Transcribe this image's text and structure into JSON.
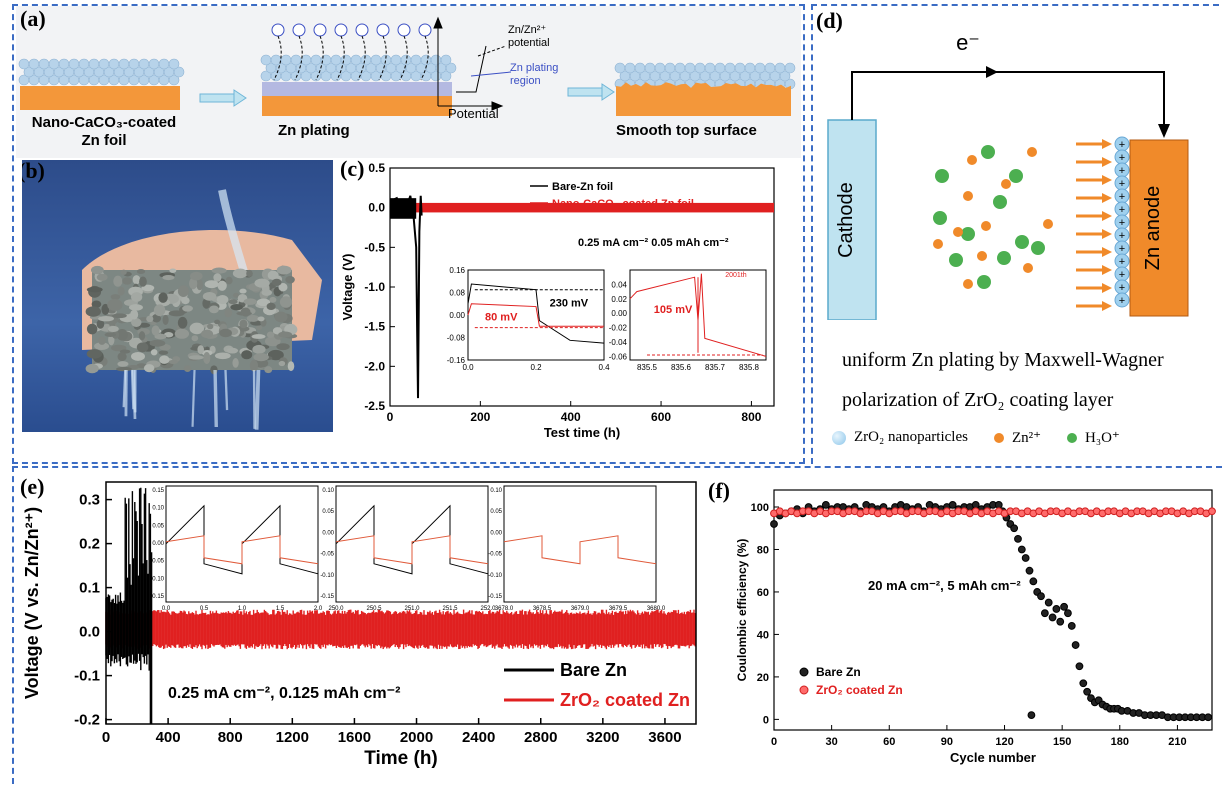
{
  "panels": {
    "a": {
      "label": "(a)",
      "captions": [
        "Nano-CaCO₃-coated",
        "Zn foil",
        "Zn  plating",
        "Smooth top surface"
      ],
      "annotations": [
        "Zn/Zn²⁺",
        "potential",
        "Zn plating",
        "region",
        "Potential"
      ]
    },
    "b": {
      "label": "(b)"
    },
    "c": {
      "label": "(c)"
    },
    "d": {
      "label": "(d)",
      "electron": "e⁻",
      "cathode": "Cathode",
      "anode": "Zn anode",
      "caption_line1": "uniform Zn plating by Maxwell-Wagner",
      "caption_line2": "polarization  of ZrO₂ coating layer",
      "legend": [
        "ZrO₂ nanoparticles",
        "Zn²⁺",
        "H₃O⁺"
      ],
      "colors": {
        "cathode": "#bfe3f0",
        "anode": "#f08a2a",
        "zn_ion": "#f08a2a",
        "h3o": "#4caf50",
        "zro2": "#9fd0ee"
      }
    },
    "e": {
      "label": "(e)"
    },
    "f": {
      "label": "(f)"
    }
  },
  "chart_data": [
    {
      "id": "c",
      "type": "line",
      "xlabel": "Test time (h)",
      "ylabel": "Voltage  (V)",
      "xlim": [
        0,
        850
      ],
      "ylim": [
        -2.5,
        0.5
      ],
      "xticks": [
        0,
        200,
        400,
        600,
        800
      ],
      "yticks": [
        0.5,
        0.0,
        -0.5,
        -1.0,
        -1.5,
        -2.0,
        -2.5
      ],
      "ytick_labels": [
        "0.5",
        "0.0",
        "-0.5",
        "-1.0",
        "-1.5",
        "-2.0",
        "-2.5"
      ],
      "legend": [
        "Bare-Zn foil",
        "Nano-CaCO₃-coated Zn foil"
      ],
      "colors": [
        "#000000",
        "#e02020"
      ],
      "annotation": "0.25  mA cm⁻²   0.05  mAh cm⁻²",
      "series": [
        {
          "name": "Bare-Zn foil",
          "x": [
            0,
            15,
            30,
            45,
            52,
            58,
            60,
            62,
            65,
            68,
            70
          ],
          "y": [
            0.08,
            0.12,
            -0.1,
            0.15,
            -0.1,
            -0.5,
            -1.5,
            -2.4,
            -0.3,
            0.15,
            -0.1
          ]
        },
        {
          "name": "Nano-CaCO₃-coated Zn foil",
          "x": [
            0,
            850
          ],
          "y": [
            0.0,
            0.0
          ],
          "band": 0.06
        }
      ],
      "insets": [
        {
          "xlim": [
            0,
            0.4
          ],
          "ylim": [
            -0.16,
            0.16
          ],
          "xticks": [
            0,
            0.2,
            0.4
          ],
          "xtick_labels": [
            "0.0",
            "0.2",
            "0.4"
          ],
          "yticks": [
            0.16,
            0.08,
            0.0,
            -0.08,
            -0.16
          ],
          "ytick_labels": [
            "0.16",
            "0.08",
            "0.00",
            "-0.08",
            "-0.16"
          ],
          "labels": [
            "230 mV",
            "80 mV"
          ]
        },
        {
          "xlim": [
            835.45,
            835.85
          ],
          "ylim": [
            -0.065,
            0.06
          ],
          "xticks": [
            835.5,
            835.6,
            835.7,
            835.8
          ],
          "xtick_labels": [
            "835.5",
            "835.6",
            "835.7",
            "835.8"
          ],
          "yticks": [
            0.04,
            0.02,
            0.0,
            -0.02,
            -0.04,
            -0.06
          ],
          "ytick_labels": [
            "0.04",
            "0.02",
            "0.00",
            "-0.02",
            "-0.04",
            "-0.06"
          ],
          "labels": [
            "105 mV",
            "2001th"
          ]
        }
      ]
    },
    {
      "id": "e",
      "type": "line",
      "xlabel": "Time (h)",
      "ylabel": "Voltage (V vs. Zn/Zn²⁺)",
      "xlim": [
        0,
        3800
      ],
      "ylim": [
        -0.21,
        0.34
      ],
      "xticks": [
        0,
        400,
        800,
        1200,
        1600,
        2000,
        2400,
        2800,
        3200,
        3600
      ],
      "yticks": [
        0.3,
        0.2,
        0.1,
        0.0,
        -0.1,
        -0.2
      ],
      "ytick_labels": [
        "0.3",
        "0.2",
        "0.1",
        "0.0",
        "-0.1",
        "-0.2"
      ],
      "legend": [
        "Bare Zn",
        "ZrO₂ coated Zn"
      ],
      "colors": [
        "#000000",
        "#e02020"
      ],
      "annotation": "0.25 mA cm⁻², 0.125 mAh cm⁻²",
      "series": [
        {
          "name": "Bare Zn",
          "x": [
            0,
            300
          ],
          "y_range": [
            -0.2,
            0.34
          ]
        },
        {
          "name": "ZrO₂ coated Zn",
          "x": [
            0,
            3800
          ],
          "y_range": [
            -0.04,
            0.05
          ]
        }
      ],
      "insets": [
        {
          "xlim": [
            0,
            2.0
          ],
          "xtick_labels": [
            "0.0",
            "0.5",
            "1.0",
            "1.5",
            "2.0"
          ],
          "ytick_labels": [
            "0.15",
            "0.10",
            "0.05",
            "0.00",
            "-0.05",
            "-0.10",
            "-0.15"
          ]
        },
        {
          "xlim": [
            250,
            252
          ],
          "xtick_labels": [
            "250.0",
            "250.5",
            "251.0",
            "251.5",
            "252.0"
          ],
          "ytick_labels": [
            "0.10",
            "0.05",
            "0.00",
            "-0.05",
            "-0.10",
            "-0.15"
          ]
        },
        {
          "xlim": [
            3678,
            3680
          ],
          "xtick_labels": [
            "3678.0",
            "3678.5",
            "3679.0",
            "3679.5",
            "3680.0"
          ],
          "ytick_labels": [
            "0.10",
            "0.05",
            "0.00",
            "-0.05",
            "-0.10",
            "-0.15"
          ]
        }
      ]
    },
    {
      "id": "f",
      "type": "scatter",
      "xlabel": "Cycle number",
      "ylabel": "Coulombic efficiency (%)",
      "xlim": [
        0,
        228
      ],
      "ylim": [
        -5,
        108
      ],
      "xticks": [
        0,
        30,
        60,
        90,
        120,
        150,
        180,
        210
      ],
      "yticks": [
        0,
        20,
        40,
        60,
        80,
        100
      ],
      "legend": [
        "Bare Zn",
        "ZrO₂ coated Zn"
      ],
      "colors": [
        "#000000",
        "#e02020"
      ],
      "annotation": "20 mA cm⁻², 5 mAh cm⁻²",
      "series": [
        {
          "name": "Bare Zn",
          "x": [
            0,
            3,
            6,
            9,
            12,
            15,
            18,
            21,
            24,
            27,
            30,
            33,
            36,
            39,
            42,
            45,
            48,
            51,
            54,
            57,
            60,
            63,
            66,
            69,
            72,
            75,
            78,
            81,
            84,
            87,
            90,
            93,
            96,
            99,
            102,
            105,
            108,
            111,
            114,
            117,
            119,
            121,
            123,
            125,
            127,
            129,
            131,
            133,
            134,
            135,
            137,
            139,
            141,
            143,
            145,
            147,
            149,
            151,
            153,
            155,
            157,
            159,
            161,
            163,
            165,
            167,
            169,
            171,
            173,
            175,
            177,
            179,
            181,
            184,
            187,
            190,
            193,
            196,
            199,
            202,
            205,
            208,
            211,
            214,
            217,
            220,
            223,
            226
          ],
          "y": [
            92,
            96,
            97,
            98,
            99,
            97,
            100,
            98,
            99,
            101,
            99,
            100,
            100,
            99,
            100,
            98,
            101,
            100,
            99,
            100,
            98,
            100,
            101,
            100,
            99,
            100,
            98,
            101,
            100,
            99,
            100,
            101,
            99,
            100,
            100,
            101,
            99,
            100,
            101,
            101,
            98,
            95,
            92,
            90,
            85,
            80,
            76,
            70,
            2,
            65,
            60,
            58,
            50,
            55,
            48,
            52,
            46,
            53,
            50,
            44,
            35,
            25,
            17,
            13,
            10,
            8,
            9,
            7,
            6,
            5,
            5,
            5,
            4,
            4,
            3,
            3,
            2,
            2,
            2,
            2,
            1,
            1,
            1,
            1,
            1,
            1,
            1,
            1
          ]
        },
        {
          "name": "ZrO₂ coated Zn",
          "x": [
            0,
            3,
            6,
            9,
            12,
            15,
            18,
            21,
            24,
            27,
            30,
            33,
            36,
            39,
            42,
            45,
            48,
            51,
            54,
            57,
            60,
            63,
            66,
            69,
            72,
            75,
            78,
            81,
            84,
            87,
            90,
            93,
            96,
            99,
            102,
            105,
            108,
            111,
            114,
            117,
            120,
            123,
            126,
            129,
            132,
            135,
            138,
            141,
            144,
            147,
            150,
            153,
            156,
            159,
            162,
            165,
            168,
            171,
            174,
            177,
            180,
            183,
            186,
            189,
            192,
            195,
            198,
            201,
            204,
            207,
            210,
            213,
            216,
            219,
            222,
            225,
            228
          ],
          "y": [
            97,
            98,
            97,
            98,
            97,
            98,
            98,
            97,
            98,
            97,
            98,
            98,
            97,
            98,
            98,
            97,
            98,
            98,
            97,
            98,
            97,
            98,
            98,
            97,
            98,
            98,
            97,
            98,
            98,
            97,
            98,
            97,
            98,
            98,
            97,
            98,
            97,
            98,
            97,
            98,
            97,
            98,
            98,
            97,
            98,
            97,
            98,
            97,
            98,
            98,
            97,
            98,
            97,
            98,
            98,
            97,
            98,
            97,
            98,
            98,
            97,
            98,
            97,
            98,
            98,
            97,
            98,
            97,
            98,
            98,
            97,
            98,
            97,
            98,
            98,
            97,
            98
          ]
        }
      ]
    }
  ]
}
